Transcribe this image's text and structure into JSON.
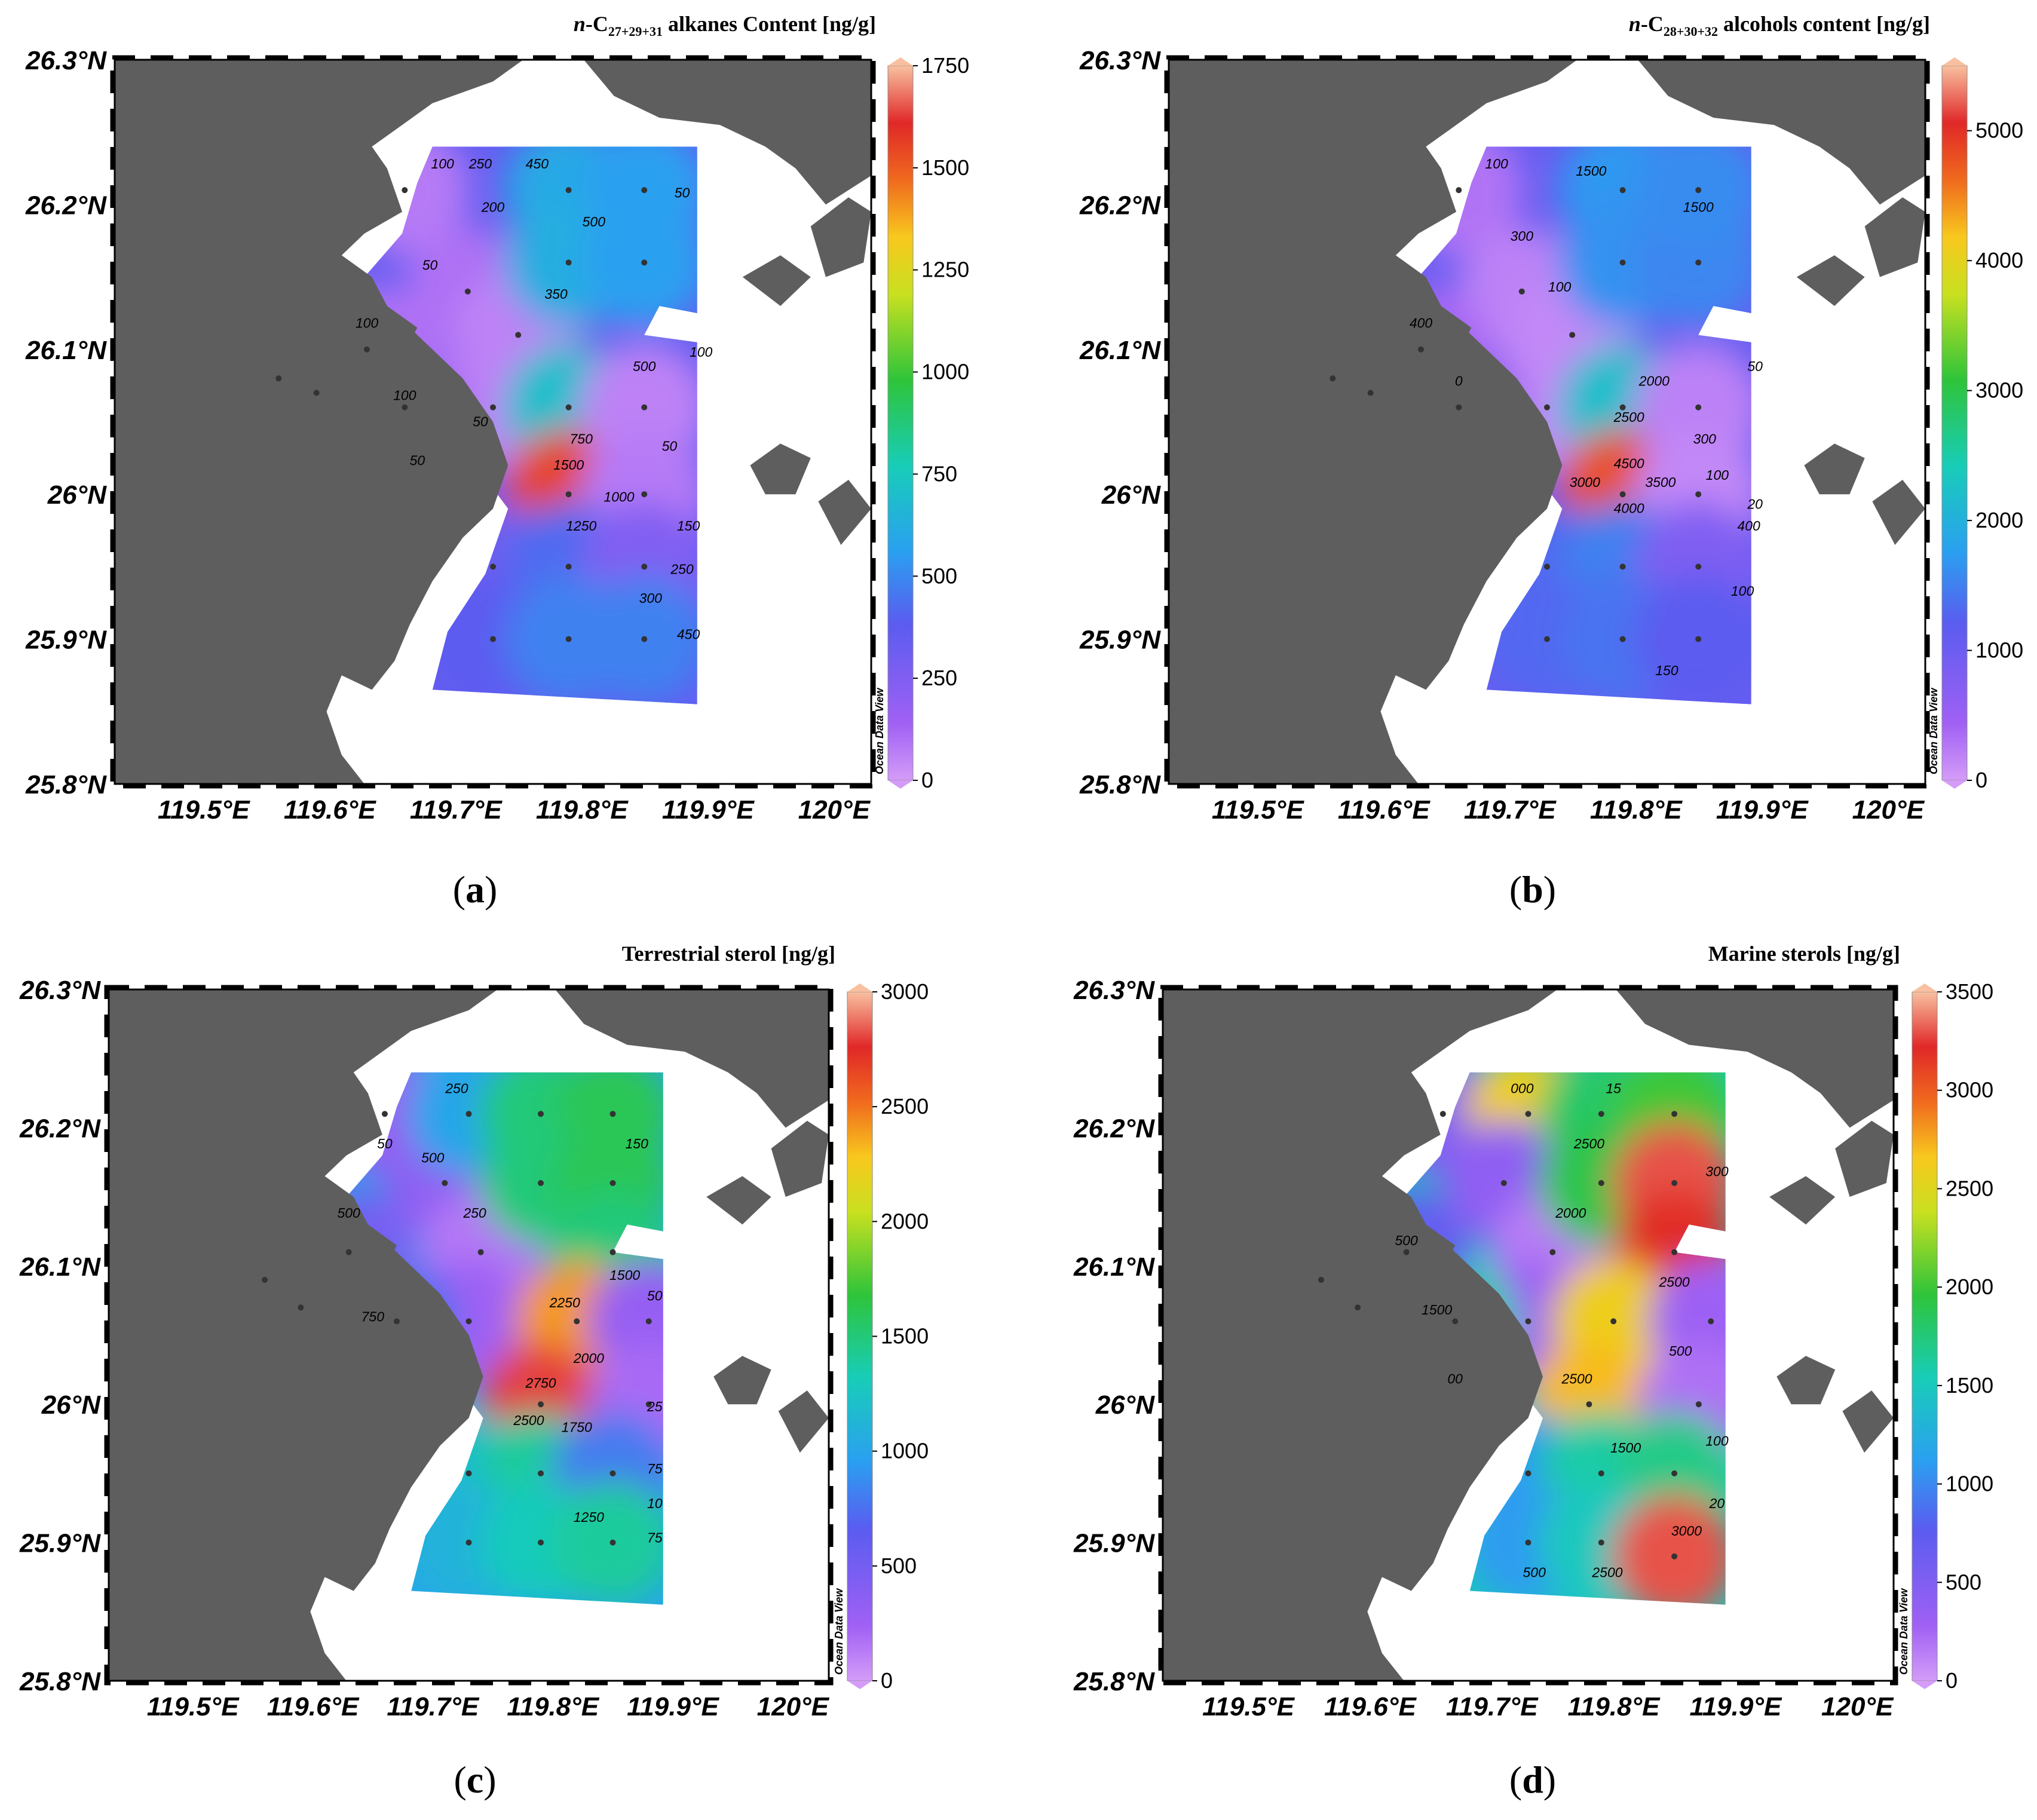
{
  "figure": {
    "x_ticks": [
      "119.5°E",
      "119.6°E",
      "119.7°E",
      "119.8°E",
      "119.9°E",
      "120°E"
    ],
    "y_ticks": [
      "26.3°N",
      "26.2°N",
      "26.1°N",
      "26°N",
      "25.9°N",
      "25.8°N"
    ],
    "watermark": "Ocean Data View",
    "colors": {
      "land": "#5e5e5e",
      "water": "#ffffff",
      "scale": [
        "#c98af8",
        "#8a4ef0",
        "#3c8cf0",
        "#1fc8c8",
        "#2bc23a",
        "#f0e01e",
        "#f0a020",
        "#e02020",
        "#f4b090"
      ]
    }
  },
  "chart_data": [
    {
      "type": "contour-map",
      "label": "(a)",
      "title_prefix": "n",
      "title_main": "-C",
      "title_sub": "27+29+31",
      "title_rest": " alkanes Content [ng/g]",
      "lon_range": [
        119.42,
        120.02
      ],
      "lat_range": [
        25.8,
        26.3
      ],
      "colorbar_ticks": [
        0,
        250,
        500,
        750,
        1000,
        1250,
        1500,
        1750
      ],
      "vmax": 1750,
      "stations": [
        {
          "lon": 119.65,
          "lat": 26.21,
          "value": 80
        },
        {
          "lon": 119.7,
          "lat": 26.14,
          "value": 100
        },
        {
          "lon": 119.74,
          "lat": 26.11,
          "value": 60
        },
        {
          "lon": 119.72,
          "lat": 26.06,
          "value": 60
        },
        {
          "lon": 119.65,
          "lat": 26.06,
          "value": 120
        },
        {
          "lon": 119.58,
          "lat": 26.07,
          "value": 80
        },
        {
          "lon": 119.55,
          "lat": 26.08,
          "value": 60
        },
        {
          "lon": 119.62,
          "lat": 26.1,
          "value": 100
        },
        {
          "lon": 119.78,
          "lat": 26.21,
          "value": 600
        },
        {
          "lon": 119.78,
          "lat": 26.16,
          "value": 620
        },
        {
          "lon": 119.84,
          "lat": 26.16,
          "value": 560
        },
        {
          "lon": 119.84,
          "lat": 26.21,
          "value": 560
        },
        {
          "lon": 119.78,
          "lat": 26.06,
          "value": 700
        },
        {
          "lon": 119.78,
          "lat": 26.0,
          "value": 1550
        },
        {
          "lon": 119.84,
          "lat": 26.06,
          "value": 60
        },
        {
          "lon": 119.84,
          "lat": 26.0,
          "value": 80
        },
        {
          "lon": 119.72,
          "lat": 25.95,
          "value": 300
        },
        {
          "lon": 119.78,
          "lat": 25.95,
          "value": 420
        },
        {
          "lon": 119.84,
          "lat": 25.95,
          "value": 250
        },
        {
          "lon": 119.72,
          "lat": 25.9,
          "value": 380
        },
        {
          "lon": 119.78,
          "lat": 25.9,
          "value": 480
        },
        {
          "lon": 119.84,
          "lat": 25.9,
          "value": 480
        }
      ],
      "contour_labels": [
        {
          "lon": 119.68,
          "lat": 26.225,
          "text": "100"
        },
        {
          "lon": 119.71,
          "lat": 26.225,
          "text": "250"
        },
        {
          "lon": 119.755,
          "lat": 26.225,
          "text": "450"
        },
        {
          "lon": 119.72,
          "lat": 26.195,
          "text": "200"
        },
        {
          "lon": 119.8,
          "lat": 26.185,
          "text": "500"
        },
        {
          "lon": 119.87,
          "lat": 26.205,
          "text": "50"
        },
        {
          "lon": 119.67,
          "lat": 26.155,
          "text": "50"
        },
        {
          "lon": 119.77,
          "lat": 26.135,
          "text": "350"
        },
        {
          "lon": 119.62,
          "lat": 26.115,
          "text": "100"
        },
        {
          "lon": 119.84,
          "lat": 26.085,
          "text": "500"
        },
        {
          "lon": 119.885,
          "lat": 26.095,
          "text": "100"
        },
        {
          "lon": 119.65,
          "lat": 26.065,
          "text": "100"
        },
        {
          "lon": 119.79,
          "lat": 26.035,
          "text": "750"
        },
        {
          "lon": 119.78,
          "lat": 26.017,
          "text": "1500"
        },
        {
          "lon": 119.86,
          "lat": 26.03,
          "text": "50"
        },
        {
          "lon": 119.71,
          "lat": 26.047,
          "text": "50"
        },
        {
          "lon": 119.66,
          "lat": 26.02,
          "text": "50"
        },
        {
          "lon": 119.82,
          "lat": 25.995,
          "text": "1000"
        },
        {
          "lon": 119.79,
          "lat": 25.975,
          "text": "1250"
        },
        {
          "lon": 119.875,
          "lat": 25.975,
          "text": "150"
        },
        {
          "lon": 119.87,
          "lat": 25.945,
          "text": "250"
        },
        {
          "lon": 119.845,
          "lat": 25.925,
          "text": "300"
        },
        {
          "lon": 119.875,
          "lat": 25.9,
          "text": "450"
        }
      ]
    },
    {
      "type": "contour-map",
      "label": "(b)",
      "title_prefix": "n",
      "title_main": "-C",
      "title_sub": "28+30+32",
      "title_rest": " alcohols content [ng/g]",
      "lon_range": [
        119.42,
        120.02
      ],
      "lat_range": [
        25.8,
        26.3
      ],
      "colorbar_ticks": [
        0,
        1000,
        2000,
        3000,
        4000,
        5000
      ],
      "vmax": 5500,
      "stations": [
        {
          "lon": 119.65,
          "lat": 26.21,
          "value": 300
        },
        {
          "lon": 119.7,
          "lat": 26.14,
          "value": 200
        },
        {
          "lon": 119.74,
          "lat": 26.11,
          "value": 150
        },
        {
          "lon": 119.72,
          "lat": 26.06,
          "value": 150
        },
        {
          "lon": 119.65,
          "lat": 26.06,
          "value": 600
        },
        {
          "lon": 119.58,
          "lat": 26.07,
          "value": 250
        },
        {
          "lon": 119.55,
          "lat": 26.08,
          "value": 200
        },
        {
          "lon": 119.62,
          "lat": 26.1,
          "value": 400
        },
        {
          "lon": 119.78,
          "lat": 26.21,
          "value": 1700
        },
        {
          "lon": 119.78,
          "lat": 26.16,
          "value": 1650
        },
        {
          "lon": 119.84,
          "lat": 26.16,
          "value": 1550
        },
        {
          "lon": 119.84,
          "lat": 26.21,
          "value": 1600
        },
        {
          "lon": 119.78,
          "lat": 26.06,
          "value": 2200
        },
        {
          "lon": 119.78,
          "lat": 26.0,
          "value": 4800
        },
        {
          "lon": 119.84,
          "lat": 26.06,
          "value": 200
        },
        {
          "lon": 119.84,
          "lat": 26.0,
          "value": 150
        },
        {
          "lon": 119.72,
          "lat": 25.95,
          "value": 1300
        },
        {
          "lon": 119.78,
          "lat": 25.95,
          "value": 1500
        },
        {
          "lon": 119.84,
          "lat": 25.95,
          "value": 800
        },
        {
          "lon": 119.72,
          "lat": 25.9,
          "value": 1300
        },
        {
          "lon": 119.78,
          "lat": 25.9,
          "value": 1400
        },
        {
          "lon": 119.84,
          "lat": 25.9,
          "value": 1200
        }
      ],
      "contour_labels": [
        {
          "lon": 119.68,
          "lat": 26.225,
          "text": "100"
        },
        {
          "lon": 119.755,
          "lat": 26.22,
          "text": "1500"
        },
        {
          "lon": 119.84,
          "lat": 26.195,
          "text": "1500"
        },
        {
          "lon": 119.7,
          "lat": 26.175,
          "text": "300"
        },
        {
          "lon": 119.62,
          "lat": 26.115,
          "text": "400"
        },
        {
          "lon": 119.73,
          "lat": 26.14,
          "text": "100"
        },
        {
          "lon": 119.805,
          "lat": 26.075,
          "text": "2000"
        },
        {
          "lon": 119.885,
          "lat": 26.085,
          "text": "50"
        },
        {
          "lon": 119.785,
          "lat": 26.05,
          "text": "2500"
        },
        {
          "lon": 119.65,
          "lat": 26.075,
          "text": "0"
        },
        {
          "lon": 119.845,
          "lat": 26.035,
          "text": "300"
        },
        {
          "lon": 119.75,
          "lat": 26.005,
          "text": "3000"
        },
        {
          "lon": 119.785,
          "lat": 26.018,
          "text": "4500"
        },
        {
          "lon": 119.81,
          "lat": 26.005,
          "text": "3500"
        },
        {
          "lon": 119.785,
          "lat": 25.987,
          "text": "4000"
        },
        {
          "lon": 119.855,
          "lat": 26.01,
          "text": "100"
        },
        {
          "lon": 119.885,
          "lat": 25.99,
          "text": "20"
        },
        {
          "lon": 119.88,
          "lat": 25.975,
          "text": "400"
        },
        {
          "lon": 119.875,
          "lat": 25.93,
          "text": "100"
        },
        {
          "lon": 119.815,
          "lat": 25.875,
          "text": "150"
        }
      ]
    },
    {
      "type": "contour-map",
      "label": "(c)",
      "title_prefix": "",
      "title_main": "Terrestrial sterol [ng/g]",
      "title_sub": "",
      "title_rest": "",
      "lon_range": [
        119.42,
        120.02
      ],
      "lat_range": [
        25.8,
        26.3
      ],
      "colorbar_ticks": [
        0,
        500,
        1000,
        1500,
        2000,
        2500,
        3000
      ],
      "vmax": 3000,
      "stations": [
        {
          "lon": 119.65,
          "lat": 26.21,
          "value": 300
        },
        {
          "lon": 119.7,
          "lat": 26.16,
          "value": 350
        },
        {
          "lon": 119.73,
          "lat": 26.11,
          "value": 150
        },
        {
          "lon": 119.72,
          "lat": 26.06,
          "value": 250
        },
        {
          "lon": 119.66,
          "lat": 26.06,
          "value": 750
        },
        {
          "lon": 119.58,
          "lat": 26.07,
          "value": 300
        },
        {
          "lon": 119.55,
          "lat": 26.09,
          "value": 250
        },
        {
          "lon": 119.62,
          "lat": 26.11,
          "value": 500
        },
        {
          "lon": 119.72,
          "lat": 26.21,
          "value": 1000
        },
        {
          "lon": 119.78,
          "lat": 26.21,
          "value": 1500
        },
        {
          "lon": 119.84,
          "lat": 26.21,
          "value": 1600
        },
        {
          "lon": 119.78,
          "lat": 26.16,
          "value": 1500
        },
        {
          "lon": 119.84,
          "lat": 26.16,
          "value": 1600
        },
        {
          "lon": 119.84,
          "lat": 26.11,
          "value": 1500
        },
        {
          "lon": 119.81,
          "lat": 26.06,
          "value": 2400
        },
        {
          "lon": 119.78,
          "lat": 26.0,
          "value": 2800
        },
        {
          "lon": 119.87,
          "lat": 26.06,
          "value": 300
        },
        {
          "lon": 119.87,
          "lat": 26.0,
          "value": 200
        },
        {
          "lon": 119.72,
          "lat": 25.95,
          "value": 1200
        },
        {
          "lon": 119.78,
          "lat": 25.95,
          "value": 1400
        },
        {
          "lon": 119.84,
          "lat": 25.95,
          "value": 800
        },
        {
          "lon": 119.72,
          "lat": 25.9,
          "value": 1100
        },
        {
          "lon": 119.78,
          "lat": 25.9,
          "value": 1300
        },
        {
          "lon": 119.84,
          "lat": 25.9,
          "value": 1400
        }
      ],
      "contour_labels": [
        {
          "lon": 119.71,
          "lat": 26.225,
          "text": "250"
        },
        {
          "lon": 119.86,
          "lat": 26.185,
          "text": "150"
        },
        {
          "lon": 119.65,
          "lat": 26.185,
          "text": "50"
        },
        {
          "lon": 119.69,
          "lat": 26.175,
          "text": "500"
        },
        {
          "lon": 119.62,
          "lat": 26.135,
          "text": "500"
        },
        {
          "lon": 119.725,
          "lat": 26.135,
          "text": "250"
        },
        {
          "lon": 119.85,
          "lat": 26.09,
          "text": "1500"
        },
        {
          "lon": 119.875,
          "lat": 26.075,
          "text": "50"
        },
        {
          "lon": 119.8,
          "lat": 26.07,
          "text": "2250"
        },
        {
          "lon": 119.64,
          "lat": 26.06,
          "text": "750"
        },
        {
          "lon": 119.82,
          "lat": 26.03,
          "text": "2000"
        },
        {
          "lon": 119.78,
          "lat": 26.012,
          "text": "2750"
        },
        {
          "lon": 119.875,
          "lat": 25.995,
          "text": "25"
        },
        {
          "lon": 119.77,
          "lat": 25.985,
          "text": "2500"
        },
        {
          "lon": 119.81,
          "lat": 25.98,
          "text": "1750"
        },
        {
          "lon": 119.875,
          "lat": 25.95,
          "text": "75"
        },
        {
          "lon": 119.875,
          "lat": 25.925,
          "text": "10"
        },
        {
          "lon": 119.82,
          "lat": 25.915,
          "text": "1250"
        },
        {
          "lon": 119.875,
          "lat": 25.9,
          "text": "75"
        }
      ]
    },
    {
      "type": "contour-map",
      "label": "(d)",
      "title_prefix": "",
      "title_main": "Marine sterols [ng/g]",
      "title_sub": "",
      "title_rest": "",
      "lon_range": [
        119.42,
        120.02
      ],
      "lat_range": [
        25.8,
        26.3
      ],
      "colorbar_ticks": [
        0,
        500,
        1000,
        1500,
        2000,
        2500,
        3000,
        3500
      ],
      "vmax": 3500,
      "stations": [
        {
          "lon": 119.65,
          "lat": 26.21,
          "value": 500
        },
        {
          "lon": 119.72,
          "lat": 26.21,
          "value": 2600
        },
        {
          "lon": 119.7,
          "lat": 26.16,
          "value": 400
        },
        {
          "lon": 119.74,
          "lat": 26.11,
          "value": 150
        },
        {
          "lon": 119.72,
          "lat": 26.06,
          "value": 300
        },
        {
          "lon": 119.66,
          "lat": 26.06,
          "value": 1600
        },
        {
          "lon": 119.58,
          "lat": 26.07,
          "value": 500
        },
        {
          "lon": 119.55,
          "lat": 26.09,
          "value": 400
        },
        {
          "lon": 119.62,
          "lat": 26.11,
          "value": 700
        },
        {
          "lon": 119.78,
          "lat": 26.21,
          "value": 1800
        },
        {
          "lon": 119.84,
          "lat": 26.21,
          "value": 2000
        },
        {
          "lon": 119.78,
          "lat": 26.16,
          "value": 1900
        },
        {
          "lon": 119.84,
          "lat": 26.16,
          "value": 3300
        },
        {
          "lon": 119.84,
          "lat": 26.11,
          "value": 3200
        },
        {
          "lon": 119.79,
          "lat": 26.06,
          "value": 2600
        },
        {
          "lon": 119.77,
          "lat": 26.0,
          "value": 2700
        },
        {
          "lon": 119.87,
          "lat": 26.06,
          "value": 300
        },
        {
          "lon": 119.86,
          "lat": 26.0,
          "value": 200
        },
        {
          "lon": 119.72,
          "lat": 25.95,
          "value": 1100
        },
        {
          "lon": 119.78,
          "lat": 25.95,
          "value": 1600
        },
        {
          "lon": 119.84,
          "lat": 25.95,
          "value": 1700
        },
        {
          "lon": 119.72,
          "lat": 25.9,
          "value": 1100
        },
        {
          "lon": 119.78,
          "lat": 25.9,
          "value": 1500
        },
        {
          "lon": 119.84,
          "lat": 25.89,
          "value": 3300
        }
      ],
      "contour_labels": [
        {
          "lon": 119.715,
          "lat": 26.225,
          "text": "000"
        },
        {
          "lon": 119.79,
          "lat": 26.225,
          "text": "15"
        },
        {
          "lon": 119.77,
          "lat": 26.185,
          "text": "2500"
        },
        {
          "lon": 119.875,
          "lat": 26.165,
          "text": "300"
        },
        {
          "lon": 119.755,
          "lat": 26.135,
          "text": "2000"
        },
        {
          "lon": 119.62,
          "lat": 26.115,
          "text": "500"
        },
        {
          "lon": 119.84,
          "lat": 26.085,
          "text": "2500"
        },
        {
          "lon": 119.645,
          "lat": 26.065,
          "text": "1500"
        },
        {
          "lon": 119.845,
          "lat": 26.035,
          "text": "500"
        },
        {
          "lon": 119.76,
          "lat": 26.015,
          "text": "2500"
        },
        {
          "lon": 119.66,
          "lat": 26.015,
          "text": "00"
        },
        {
          "lon": 119.8,
          "lat": 25.965,
          "text": "1500"
        },
        {
          "lon": 119.875,
          "lat": 25.97,
          "text": "100"
        },
        {
          "lon": 119.875,
          "lat": 25.925,
          "text": "20"
        },
        {
          "lon": 119.85,
          "lat": 25.905,
          "text": "3000"
        },
        {
          "lon": 119.725,
          "lat": 25.875,
          "text": "500"
        },
        {
          "lon": 119.785,
          "lat": 25.875,
          "text": "2500"
        }
      ]
    }
  ]
}
